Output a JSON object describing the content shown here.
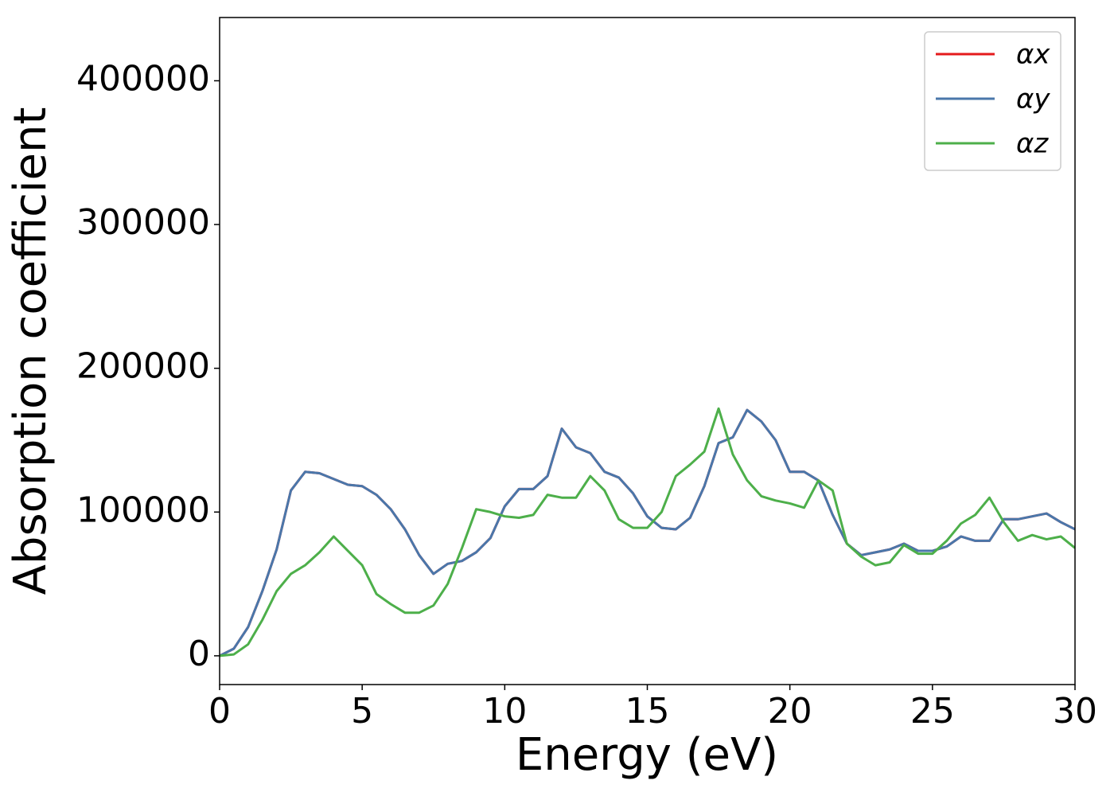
{
  "chart_data": {
    "type": "line",
    "xlabel": "Energy (eV)",
    "ylabel": "Absorption coefficient",
    "x": [
      0,
      0.5,
      1,
      1.5,
      2,
      2.5,
      3,
      3.5,
      4,
      4.5,
      5,
      5.5,
      6,
      6.5,
      7,
      7.5,
      8,
      8.5,
      9,
      9.5,
      10,
      10.5,
      11,
      11.5,
      12,
      12.5,
      13,
      13.5,
      14,
      14.5,
      15,
      15.5,
      16,
      16.5,
      17,
      17.5,
      18,
      18.5,
      19,
      19.5,
      20,
      20.5,
      21,
      21.5,
      22,
      22.5,
      23,
      23.5,
      24,
      24.5,
      25,
      25.5,
      26,
      26.5,
      27,
      27.5,
      28,
      28.5,
      29,
      29.5,
      30
    ],
    "series": [
      {
        "name": "αx",
        "color": "#e41a1c",
        "values": [
          0,
          5000,
          20000,
          45000,
          74000,
          115000,
          128000,
          127000,
          123000,
          119000,
          118000,
          112000,
          102000,
          88000,
          70000,
          57000,
          64000,
          66000,
          72000,
          82000,
          104000,
          116000,
          116000,
          125000,
          158000,
          145000,
          141000,
          128000,
          124000,
          113000,
          97000,
          89000,
          88000,
          96000,
          118000,
          148000,
          152000,
          171000,
          163000,
          150000,
          128000,
          128000,
          122000,
          98000,
          78000,
          70000,
          72000,
          74000,
          78000,
          73000,
          73000,
          76000,
          83000,
          80000,
          80000,
          95000,
          95000,
          97000,
          99000,
          93000,
          88000
        ]
      },
      {
        "name": "αy",
        "color": "#4a77aa",
        "values": [
          0,
          5000,
          20000,
          45000,
          74000,
          115000,
          128000,
          127000,
          123000,
          119000,
          118000,
          112000,
          102000,
          88000,
          70000,
          57000,
          64000,
          66000,
          72000,
          82000,
          104000,
          116000,
          116000,
          125000,
          158000,
          145000,
          141000,
          128000,
          124000,
          113000,
          97000,
          89000,
          88000,
          96000,
          118000,
          148000,
          152000,
          171000,
          163000,
          150000,
          128000,
          128000,
          122000,
          98000,
          78000,
          70000,
          72000,
          74000,
          78000,
          73000,
          73000,
          76000,
          83000,
          80000,
          80000,
          95000,
          95000,
          97000,
          99000,
          93000,
          88000
        ]
      },
      {
        "name": "αz",
        "color": "#4daf4a",
        "values": [
          0,
          1000,
          8000,
          25000,
          45000,
          57000,
          63000,
          72000,
          83000,
          73000,
          63000,
          43000,
          36000,
          30000,
          30000,
          35000,
          50000,
          75000,
          102000,
          100000,
          97000,
          96000,
          98000,
          112000,
          110000,
          110000,
          125000,
          115000,
          95000,
          89000,
          89000,
          100000,
          125000,
          133000,
          142000,
          172000,
          140000,
          122000,
          111000,
          108000,
          106000,
          103000,
          122000,
          115000,
          78000,
          69000,
          63000,
          65000,
          77000,
          71000,
          71000,
          80000,
          92000,
          98000,
          110000,
          93000,
          80000,
          84000,
          81000,
          83000,
          75000
        ]
      }
    ],
    "xlim": [
      0,
      30
    ],
    "xticks": [
      0,
      5,
      10,
      15,
      20,
      25,
      30
    ],
    "ylim": [
      -20000,
      444000
    ],
    "yticks": [
      0,
      100000,
      200000,
      300000,
      400000
    ],
    "legend": "upper right"
  }
}
